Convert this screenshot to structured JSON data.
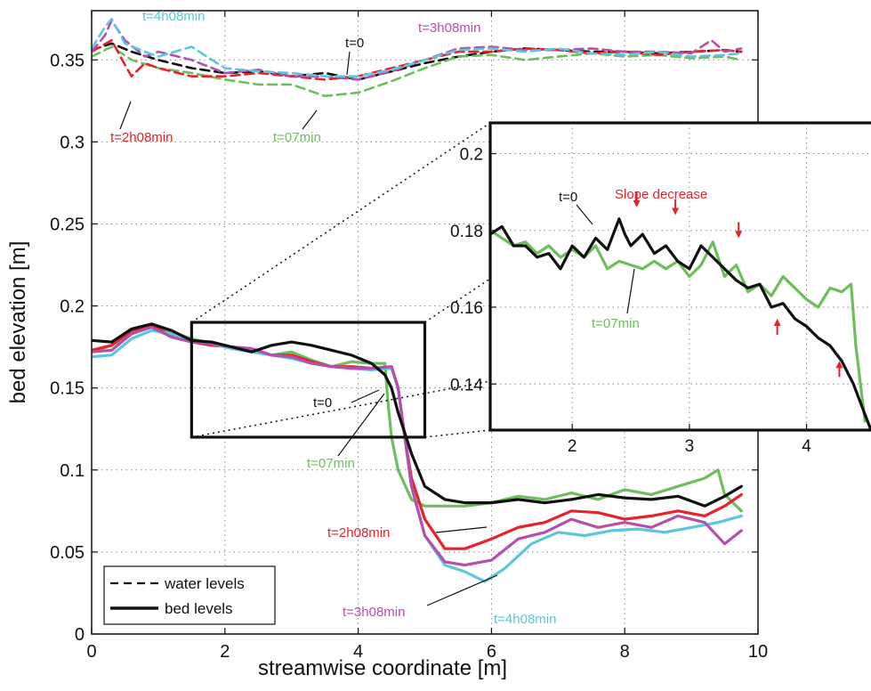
{
  "chart_data": {
    "type": "line",
    "xlabel": "streamwise coordinate [m]",
    "ylabel": "bed elevation [m]",
    "xlim": [
      0,
      10
    ],
    "ylim": [
      0,
      0.38
    ],
    "xticks": [
      0,
      2,
      4,
      6,
      8,
      10
    ],
    "yticks": [
      0,
      0.05,
      0.1,
      0.15,
      0.2,
      0.25,
      0.3,
      0.35
    ],
    "ytick_labels": [
      "0",
      "0.05",
      "0.1",
      "0.15",
      "0.2",
      "0.25",
      "0.3",
      "0.35"
    ],
    "grid": true,
    "legend": {
      "position": "bottom-left",
      "entries": [
        {
          "label": "water levels",
          "style": "dashed"
        },
        {
          "label": "bed levels",
          "style": "solid"
        }
      ]
    },
    "colors": {
      "t=0": "#111111",
      "t=07min": "#6cbf5a",
      "t=2h08min": "#e8212a",
      "t=3h08min": "#b44fae",
      "t=4h08min": "#5cc6dc"
    },
    "series": [
      {
        "name": "t=0",
        "kind": "bed",
        "color": "#111111",
        "x": [
          0,
          0.3,
          0.6,
          0.9,
          1.2,
          1.5,
          1.8,
          2.1,
          2.4,
          2.7,
          3.0,
          3.3,
          3.6,
          3.9,
          4.2,
          4.4,
          4.5,
          4.6,
          4.8,
          5.0,
          5.3,
          5.6,
          6.0,
          6.4,
          6.8,
          7.2,
          7.6,
          8.0,
          8.4,
          8.8,
          9.2,
          9.5,
          9.75
        ],
        "y": [
          0.179,
          0.178,
          0.186,
          0.189,
          0.185,
          0.179,
          0.178,
          0.175,
          0.172,
          0.176,
          0.178,
          0.176,
          0.173,
          0.17,
          0.165,
          0.158,
          0.15,
          0.135,
          0.11,
          0.09,
          0.082,
          0.08,
          0.08,
          0.082,
          0.08,
          0.082,
          0.085,
          0.083,
          0.082,
          0.084,
          0.078,
          0.084,
          0.09
        ]
      },
      {
        "name": "t=07min",
        "kind": "bed",
        "color": "#6cbf5a",
        "x": [
          0,
          0.3,
          0.6,
          0.9,
          1.2,
          1.5,
          1.8,
          2.1,
          2.4,
          2.7,
          3.0,
          3.3,
          3.6,
          3.9,
          4.2,
          4.4,
          4.45,
          4.5,
          4.6,
          4.8,
          5.0,
          5.3,
          5.6,
          6.0,
          6.4,
          6.8,
          7.2,
          7.6,
          8.0,
          8.4,
          8.8,
          9.2,
          9.4,
          9.5,
          9.75
        ],
        "y": [
          0.172,
          0.176,
          0.183,
          0.188,
          0.184,
          0.18,
          0.177,
          0.175,
          0.173,
          0.17,
          0.172,
          0.167,
          0.163,
          0.166,
          0.165,
          0.165,
          0.14,
          0.12,
          0.1,
          0.082,
          0.078,
          0.078,
          0.078,
          0.08,
          0.084,
          0.082,
          0.086,
          0.082,
          0.088,
          0.085,
          0.09,
          0.095,
          0.1,
          0.085,
          0.075
        ]
      },
      {
        "name": "t=2h08min",
        "kind": "bed",
        "color": "#e8212a",
        "x": [
          0,
          0.3,
          0.6,
          0.9,
          1.2,
          1.5,
          1.8,
          2.1,
          2.4,
          2.7,
          3.0,
          3.3,
          3.6,
          3.9,
          4.2,
          4.5,
          4.6,
          4.7,
          4.8,
          5.0,
          5.3,
          5.6,
          6.0,
          6.4,
          6.8,
          7.2,
          7.6,
          8.0,
          8.4,
          8.8,
          9.2,
          9.5,
          9.75
        ],
        "y": [
          0.173,
          0.176,
          0.185,
          0.188,
          0.182,
          0.178,
          0.176,
          0.175,
          0.174,
          0.17,
          0.17,
          0.166,
          0.163,
          0.163,
          0.162,
          0.163,
          0.15,
          0.12,
          0.095,
          0.07,
          0.052,
          0.052,
          0.058,
          0.065,
          0.068,
          0.075,
          0.074,
          0.07,
          0.072,
          0.075,
          0.072,
          0.078,
          0.085
        ]
      },
      {
        "name": "t=3h08min",
        "kind": "bed",
        "color": "#b44fae",
        "x": [
          0,
          0.3,
          0.6,
          0.9,
          1.2,
          1.5,
          1.8,
          2.1,
          2.4,
          2.7,
          3.0,
          3.3,
          3.6,
          3.9,
          4.2,
          4.5,
          4.6,
          4.7,
          4.8,
          5.0,
          5.3,
          5.6,
          6.0,
          6.4,
          6.8,
          7.2,
          7.6,
          8.0,
          8.4,
          8.8,
          9.2,
          9.5,
          9.75
        ],
        "y": [
          0.172,
          0.173,
          0.183,
          0.187,
          0.181,
          0.178,
          0.177,
          0.175,
          0.174,
          0.17,
          0.169,
          0.165,
          0.163,
          0.162,
          0.162,
          0.163,
          0.15,
          0.12,
          0.09,
          0.06,
          0.044,
          0.042,
          0.045,
          0.058,
          0.062,
          0.07,
          0.065,
          0.068,
          0.065,
          0.072,
          0.068,
          0.055,
          0.063
        ]
      },
      {
        "name": "t=4h08min",
        "kind": "bed",
        "color": "#5cc6dc",
        "x": [
          0,
          0.3,
          0.6,
          0.9,
          1.2,
          1.5,
          1.8,
          2.1,
          2.4,
          2.7,
          3.0,
          3.3,
          3.6,
          3.9,
          4.2,
          4.5,
          4.6,
          4.7,
          4.8,
          5.0,
          5.3,
          5.6,
          5.9,
          6.2,
          6.6,
          7.0,
          7.4,
          7.8,
          8.2,
          8.6,
          9.0,
          9.4,
          9.75
        ],
        "y": [
          0.169,
          0.17,
          0.18,
          0.185,
          0.183,
          0.179,
          0.177,
          0.174,
          0.172,
          0.17,
          0.168,
          0.165,
          0.163,
          0.162,
          0.161,
          0.162,
          0.15,
          0.12,
          0.09,
          0.06,
          0.042,
          0.038,
          0.032,
          0.04,
          0.055,
          0.062,
          0.06,
          0.063,
          0.064,
          0.062,
          0.065,
          0.068,
          0.072
        ]
      },
      {
        "name": "t=0",
        "kind": "water",
        "color": "#111111",
        "x": [
          0,
          0.3,
          0.6,
          1.0,
          1.5,
          2.0,
          2.5,
          3.0,
          3.5,
          4.0,
          4.5,
          5.0,
          5.5,
          6.0,
          6.5,
          7.0,
          7.5,
          8.0,
          8.5,
          9.0,
          9.5,
          9.75
        ],
        "y": [
          0.356,
          0.36,
          0.355,
          0.35,
          0.345,
          0.342,
          0.343,
          0.34,
          0.342,
          0.338,
          0.343,
          0.348,
          0.352,
          0.355,
          0.357,
          0.356,
          0.355,
          0.355,
          0.354,
          0.355,
          0.356,
          0.355
        ]
      },
      {
        "name": "t=07min",
        "kind": "water",
        "color": "#6cbf5a",
        "x": [
          0,
          0.3,
          0.6,
          1.0,
          1.5,
          2.0,
          2.5,
          3.0,
          3.5,
          4.0,
          4.5,
          5.0,
          5.5,
          6.0,
          6.5,
          7.0,
          7.5,
          8.0,
          8.5,
          9.0,
          9.5,
          9.75
        ],
        "y": [
          0.352,
          0.358,
          0.35,
          0.345,
          0.342,
          0.338,
          0.335,
          0.335,
          0.328,
          0.33,
          0.337,
          0.345,
          0.352,
          0.353,
          0.35,
          0.352,
          0.354,
          0.352,
          0.353,
          0.351,
          0.352,
          0.35
        ]
      },
      {
        "name": "t=2h08min",
        "kind": "water",
        "color": "#e8212a",
        "x": [
          0,
          0.3,
          0.5,
          0.6,
          0.8,
          1.0,
          1.5,
          2.0,
          2.5,
          3.0,
          3.5,
          4.0,
          4.5,
          5.0,
          5.5,
          6.0,
          6.5,
          7.0,
          7.5,
          8.0,
          8.5,
          9.0,
          9.5,
          9.75
        ],
        "y": [
          0.355,
          0.362,
          0.347,
          0.34,
          0.348,
          0.345,
          0.34,
          0.34,
          0.342,
          0.34,
          0.338,
          0.34,
          0.345,
          0.35,
          0.355,
          0.355,
          0.357,
          0.356,
          0.354,
          0.355,
          0.353,
          0.355,
          0.356,
          0.355
        ]
      },
      {
        "name": "t=3h08min",
        "kind": "water",
        "color": "#b44fae",
        "x": [
          0,
          0.2,
          0.3,
          0.5,
          0.8,
          1.0,
          1.5,
          2.0,
          2.5,
          3.0,
          3.5,
          4.0,
          4.5,
          5.0,
          5.5,
          6.0,
          6.5,
          7.0,
          7.5,
          8.0,
          8.5,
          9.0,
          9.3,
          9.5,
          9.75
        ],
        "y": [
          0.355,
          0.365,
          0.374,
          0.362,
          0.352,
          0.355,
          0.35,
          0.342,
          0.344,
          0.34,
          0.34,
          0.338,
          0.343,
          0.35,
          0.357,
          0.358,
          0.356,
          0.356,
          0.357,
          0.355,
          0.355,
          0.354,
          0.362,
          0.355,
          0.357
        ]
      },
      {
        "name": "t=4h08min",
        "kind": "water",
        "color": "#5cc6dc",
        "x": [
          0,
          0.2,
          0.3,
          0.5,
          0.8,
          1.0,
          1.5,
          2.0,
          2.5,
          3.0,
          3.5,
          4.0,
          4.5,
          5.0,
          5.5,
          6.0,
          6.5,
          7.0,
          7.5,
          8.0,
          8.5,
          9.0,
          9.5,
          9.75
        ],
        "y": [
          0.357,
          0.37,
          0.375,
          0.36,
          0.355,
          0.352,
          0.358,
          0.345,
          0.343,
          0.342,
          0.34,
          0.34,
          0.344,
          0.35,
          0.356,
          0.357,
          0.355,
          0.357,
          0.354,
          0.353,
          0.355,
          0.352,
          0.353,
          0.354
        ]
      }
    ],
    "annotations": [
      {
        "text": "t=4h08min",
        "color": "#5cc6dc"
      },
      {
        "text": "t=0",
        "color": "#111111"
      },
      {
        "text": "t=3h08min",
        "color": "#b44fae"
      },
      {
        "text": "t=2h08min",
        "color": "#e8212a"
      },
      {
        "text": "t=07min",
        "color": "#6cbf5a"
      },
      {
        "text": "t=0",
        "color": "#111111"
      },
      {
        "text": "t=07min",
        "color": "#6cbf5a"
      },
      {
        "text": "t=2h08min",
        "color": "#e8212a"
      },
      {
        "text": "t=3h08min",
        "color": "#b44fae"
      },
      {
        "text": "t=4h08min",
        "color": "#5cc6dc"
      }
    ],
    "inset": {
      "xlim": [
        1.3,
        4.55
      ],
      "ylim": [
        0.128,
        0.208
      ],
      "xticks": [
        2,
        3,
        4
      ],
      "yticks": [
        0.14,
        0.16,
        0.18,
        0.2
      ],
      "ytick_labels": [
        "0.14",
        "0.16",
        "0.18",
        "0.2"
      ],
      "zoom_box": {
        "x": [
          1.5,
          5.0
        ],
        "y": [
          0.12,
          0.19
        ]
      },
      "series": [
        {
          "name": "t=0",
          "color": "#111111",
          "x": [
            1.3,
            1.4,
            1.5,
            1.6,
            1.7,
            1.8,
            1.9,
            2.0,
            2.1,
            2.2,
            2.3,
            2.4,
            2.45,
            2.5,
            2.6,
            2.7,
            2.8,
            2.9,
            3.0,
            3.1,
            3.2,
            3.3,
            3.4,
            3.5,
            3.6,
            3.7,
            3.8,
            3.9,
            4.0,
            4.1,
            4.2,
            4.3,
            4.4,
            4.5,
            4.55
          ],
          "y": [
            0.179,
            0.181,
            0.176,
            0.176,
            0.173,
            0.174,
            0.17,
            0.176,
            0.173,
            0.178,
            0.175,
            0.183,
            0.179,
            0.176,
            0.179,
            0.174,
            0.176,
            0.172,
            0.17,
            0.176,
            0.173,
            0.17,
            0.167,
            0.165,
            0.166,
            0.16,
            0.161,
            0.157,
            0.155,
            0.152,
            0.15,
            0.146,
            0.14,
            0.132,
            0.128
          ]
        },
        {
          "name": "t=07min",
          "color": "#6cbf5a",
          "x": [
            1.3,
            1.4,
            1.5,
            1.6,
            1.7,
            1.8,
            1.9,
            2.0,
            2.1,
            2.2,
            2.3,
            2.4,
            2.5,
            2.6,
            2.7,
            2.8,
            2.9,
            3.0,
            3.1,
            3.2,
            3.3,
            3.4,
            3.5,
            3.6,
            3.7,
            3.8,
            3.9,
            4.0,
            4.1,
            4.2,
            4.3,
            4.38,
            4.42,
            4.5
          ],
          "y": [
            0.18,
            0.178,
            0.176,
            0.177,
            0.174,
            0.176,
            0.173,
            0.175,
            0.173,
            0.176,
            0.17,
            0.172,
            0.171,
            0.17,
            0.172,
            0.17,
            0.172,
            0.168,
            0.171,
            0.177,
            0.168,
            0.171,
            0.164,
            0.166,
            0.163,
            0.168,
            0.165,
            0.162,
            0.16,
            0.165,
            0.164,
            0.166,
            0.15,
            0.13
          ]
        }
      ],
      "annotations": [
        {
          "text": "t=0",
          "color": "#111111"
        },
        {
          "text": "Slope decrease",
          "color": "#e8212a"
        },
        {
          "text": "t=07min",
          "color": "#6cbf5a"
        }
      ],
      "arrows": [
        {
          "x": 2.55,
          "y": 0.186,
          "dir": "down"
        },
        {
          "x": 2.88,
          "y": 0.184,
          "dir": "down"
        },
        {
          "x": 3.42,
          "y": 0.178,
          "dir": "down"
        },
        {
          "x": 3.75,
          "y": 0.157,
          "dir": "up"
        },
        {
          "x": 4.28,
          "y": 0.146,
          "dir": "up"
        }
      ]
    }
  }
}
